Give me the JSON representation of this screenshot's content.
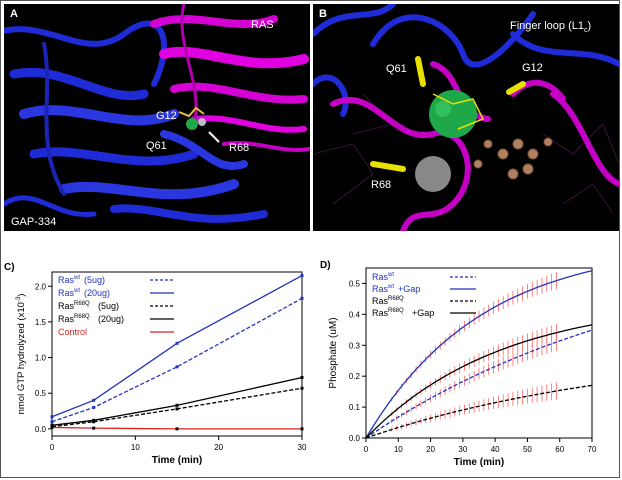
{
  "panelA": {
    "label": "A",
    "annotations": {
      "ras": "RAS",
      "g12": "G12",
      "q61": "Q61",
      "r68": "R68",
      "gap": "GAP-334"
    },
    "colors": {
      "gap_protein": "#1f2bd6",
      "ras_protein": "#d400d4"
    }
  },
  "panelB": {
    "label": "B",
    "annotations": {
      "q61": "Q61",
      "g12": "G12",
      "r68": "R68",
      "finger_loop": "Finger loop (L1",
      "finger_loop_sub": "c",
      "finger_loop_close": ")"
    },
    "colors": {
      "loop_blue": "#1f2bd6",
      "loop_magenta": "#c400c4",
      "highlight": "#e8e000",
      "sphere_green": "#1fa84a",
      "ligand": "#b08060"
    }
  },
  "chart_data": [
    {
      "panel": "C)",
      "type": "line",
      "xlabel": "Time (min)",
      "ylabel": "nmol GTP hydrolyzed (x10",
      "ylabel_sup": "-3",
      "ylabel_close": ")",
      "xlim": [
        0,
        30
      ],
      "ylim": [
        -0.1,
        2.2
      ],
      "xticks": [
        0,
        10,
        20,
        30
      ],
      "yticks": [
        0.0,
        0.5,
        1.0,
        1.5,
        2.0
      ],
      "x": [
        0,
        5,
        15,
        30
      ],
      "series": [
        {
          "name": "Ras",
          "sup": "wt",
          "extra": "(5ug)",
          "color": "#2233bb",
          "dash": true,
          "values": [
            0.1,
            0.3,
            0.87,
            1.83
          ]
        },
        {
          "name": "Ras",
          "sup": "wt",
          "extra": "(20ug)",
          "color": "#2233bb",
          "dash": false,
          "values": [
            0.17,
            0.4,
            1.2,
            2.15
          ]
        },
        {
          "name": "Ras",
          "sup": "R68Q",
          "extra": "(5ug)",
          "color": "#000000",
          "dash": true,
          "values": [
            0.03,
            0.1,
            0.28,
            0.57
          ]
        },
        {
          "name": "Ras",
          "sup": "R68Q",
          "extra": "(20ug)",
          "color": "#000000",
          "dash": false,
          "values": [
            0.05,
            0.12,
            0.33,
            0.72
          ]
        },
        {
          "name": "Control",
          "sup": "",
          "extra": "",
          "color": "#dd2222",
          "dash": false,
          "values": [
            0.02,
            0.01,
            0.0,
            0.0
          ]
        }
      ]
    },
    {
      "panel": "D)",
      "type": "line",
      "xlabel": "Time (min)",
      "ylabel": "Phosphate (uM)",
      "xlim": [
        0,
        70
      ],
      "ylim": [
        0,
        0.55
      ],
      "xticks": [
        0,
        10,
        20,
        30,
        40,
        50,
        60,
        70
      ],
      "yticks": [
        0.0,
        0.1,
        0.2,
        0.3,
        0.4,
        0.5
      ],
      "error_color": "#ff6666",
      "series": [
        {
          "name": "Ras",
          "sup": "wt",
          "extra": "",
          "color": "#2233bb",
          "dash": true,
          "model": {
            "A": 0.65,
            "k": 0.011
          },
          "x_end": 70,
          "data_x_range": [
            8,
            60
          ]
        },
        {
          "name": "Ras",
          "sup": "wt",
          "extra": "+Gap",
          "color": "#2233bb",
          "dash": false,
          "model": {
            "A": 0.63,
            "k": 0.028
          },
          "x_end": 70,
          "data_x_range": [
            8,
            60
          ]
        },
        {
          "name": "Ras",
          "sup": "R68Q",
          "extra": "",
          "color": "#000000",
          "dash": true,
          "model": {
            "A": 0.3,
            "k": 0.012
          },
          "x_end": 70,
          "data_x_range": [
            8,
            60
          ]
        },
        {
          "name": "Ras",
          "sup": "R68Q",
          "extra": "+Gap",
          "color": "#000000",
          "dash": false,
          "model": {
            "A": 0.45,
            "k": 0.024
          },
          "x_end": 70,
          "data_x_range": [
            8,
            60
          ]
        }
      ]
    }
  ]
}
